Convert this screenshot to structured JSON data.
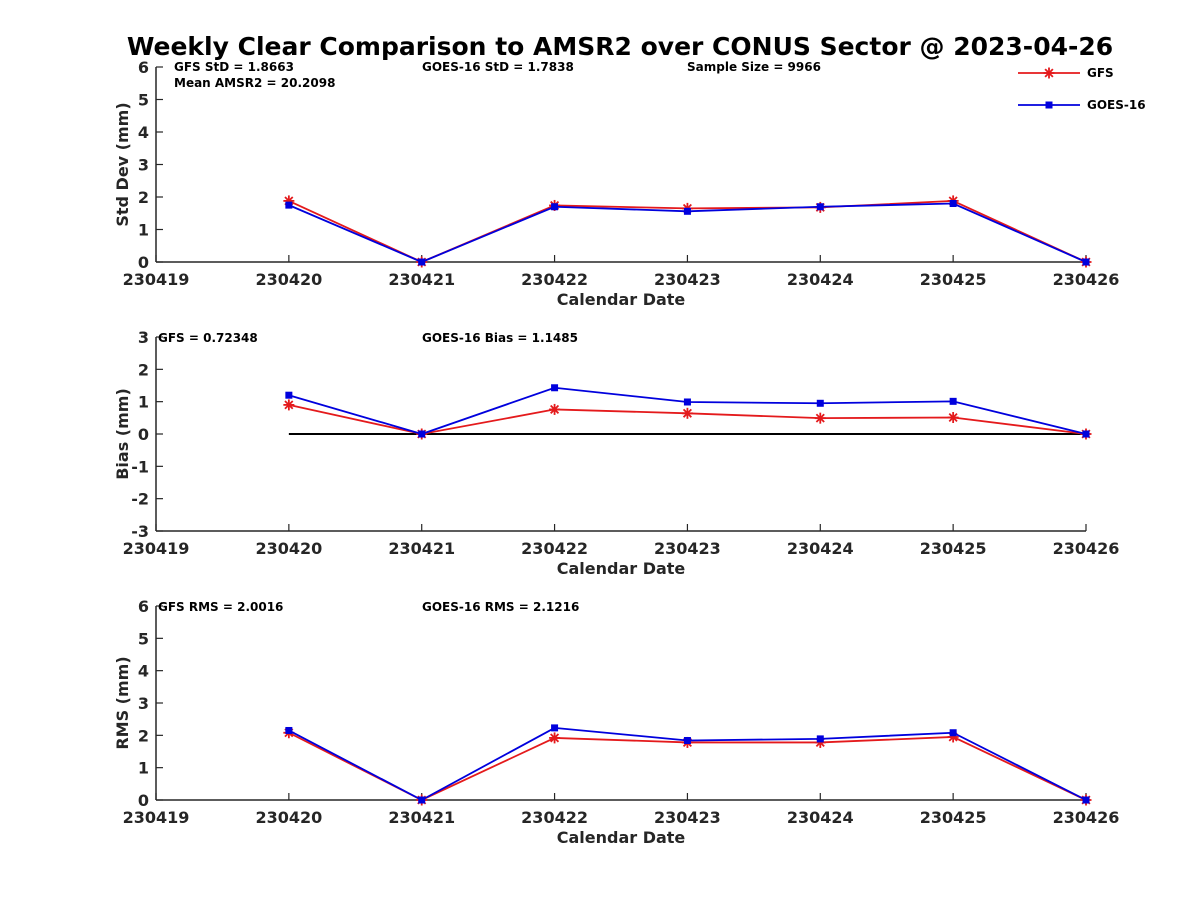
{
  "chart_data": {
    "title": "Weekly Clear Comparison to AMSR2 over CONUS Sector @ 2023-04-26",
    "legend": {
      "placement": "top-right",
      "entries": [
        {
          "name": "GFS",
          "color": "#e41a1c",
          "marker": "asterisk"
        },
        {
          "name": "GOES-16",
          "color": "#0000dd",
          "marker": "square"
        }
      ]
    },
    "x": [
      "230419",
      "230420",
      "230421",
      "230422",
      "230423",
      "230424",
      "230425",
      "230426"
    ],
    "panels": [
      {
        "type": "line",
        "xlabel": "Calendar Date",
        "ylabel": "Std Dev (mm)",
        "ylim": [
          0,
          6
        ],
        "yticks": [
          "0",
          "1",
          "2",
          "3",
          "4",
          "5",
          "6"
        ],
        "zero_line": false,
        "annotations": [
          "GFS StD = 1.8663",
          "Mean AMSR2 = 20.2098",
          "GOES-16 StD = 1.7838",
          "Sample Size = 9966"
        ],
        "series": [
          {
            "name": "GFS",
            "x": [
              "230420",
              "230421",
              "230422",
              "230423",
              "230424",
              "230425",
              "230426"
            ],
            "values": [
              1.88,
              0.0,
              1.74,
              1.65,
              1.68,
              1.88,
              0.0
            ]
          },
          {
            "name": "GOES-16",
            "x": [
              "230420",
              "230421",
              "230422",
              "230423",
              "230424",
              "230425",
              "230426"
            ],
            "values": [
              1.75,
              0.0,
              1.7,
              1.56,
              1.7,
              1.8,
              0.0
            ]
          }
        ]
      },
      {
        "type": "line",
        "xlabel": "Calendar Date",
        "ylabel": "Bias (mm)",
        "ylim": [
          -3,
          3
        ],
        "yticks": [
          "-3",
          "-2",
          "-1",
          "0",
          "1",
          "2",
          "3"
        ],
        "zero_line": true,
        "annotations": [
          "GFS = 0.72348",
          "GOES-16 Bias  = 1.1485"
        ],
        "series": [
          {
            "name": "GFS",
            "x": [
              "230420",
              "230421",
              "230422",
              "230423",
              "230424",
              "230425",
              "230426"
            ],
            "values": [
              0.9,
              0.0,
              0.76,
              0.64,
              0.49,
              0.51,
              0.0
            ]
          },
          {
            "name": "GOES-16",
            "x": [
              "230420",
              "230421",
              "230422",
              "230423",
              "230424",
              "230425",
              "230426"
            ],
            "values": [
              1.2,
              0.0,
              1.43,
              0.99,
              0.95,
              1.01,
              0.0
            ]
          }
        ]
      },
      {
        "type": "line",
        "xlabel": "Calendar Date",
        "ylabel": "RMS (mm)",
        "ylim": [
          0,
          6
        ],
        "yticks": [
          "0",
          "1",
          "2",
          "3",
          "4",
          "5",
          "6"
        ],
        "zero_line": false,
        "annotations": [
          "GFS RMS = 2.0016",
          "GOES-16 RMS = 2.1216"
        ],
        "series": [
          {
            "name": "GFS",
            "x": [
              "230420",
              "230421",
              "230422",
              "230423",
              "230424",
              "230425",
              "230426"
            ],
            "values": [
              2.08,
              0.0,
              1.92,
              1.78,
              1.78,
              1.95,
              0.0
            ]
          },
          {
            "name": "GOES-16",
            "x": [
              "230420",
              "230421",
              "230422",
              "230423",
              "230424",
              "230425",
              "230426"
            ],
            "values": [
              2.15,
              0.0,
              2.23,
              1.84,
              1.89,
              2.08,
              0.0
            ]
          }
        ]
      }
    ]
  }
}
